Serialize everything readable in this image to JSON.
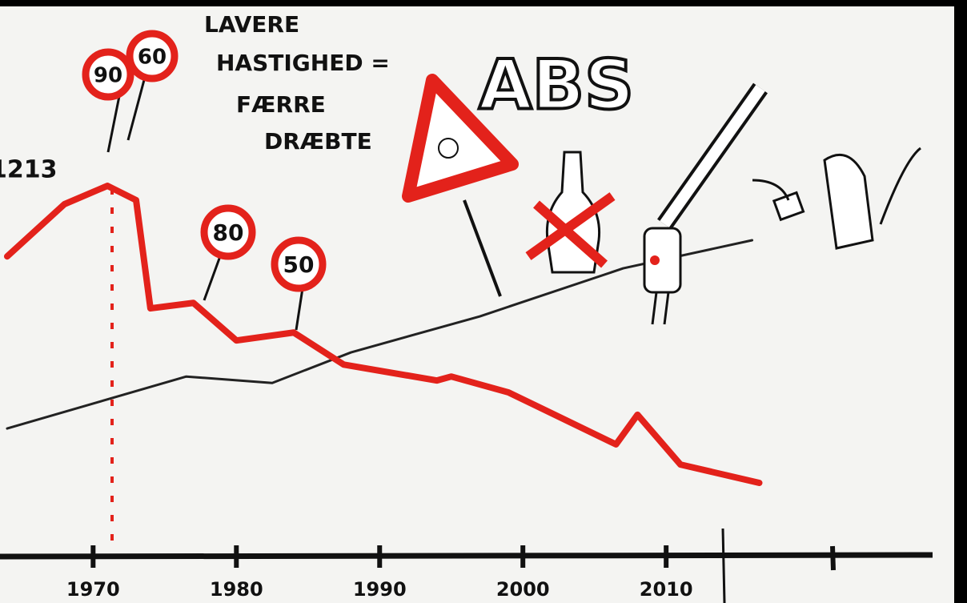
{
  "chart_data": {
    "type": "line",
    "xlim": [
      1963.5,
      2031
    ],
    "ylim": [
      0,
      1821
    ],
    "xticks": [
      1970,
      1980,
      1990,
      2000,
      2010
    ],
    "series": [
      {
        "color": "#e3221b",
        "x": [
          1964,
          1968,
          1971,
          1973,
          1974,
          1977,
          1980,
          1984,
          1987.5,
          1994,
          1995,
          1999,
          2006.5,
          2008,
          2011,
          2016.5
        ],
        "values": [
          982,
          1153,
          1213,
          1166,
          812,
          830,
          707,
          733,
          628,
          576,
          589,
          537,
          367,
          464,
          301,
          241
        ]
      },
      {
        "color": "#222222",
        "x": [
          1964,
          1976.5,
          1982.5,
          1988,
          1997,
          2007,
          2016
        ],
        "values": [
          419,
          589,
          568,
          668,
          786,
          943,
          1035
        ]
      }
    ],
    "peak_label": "1213",
    "annotation": [
      "LAVERE",
      "HASTIGHED =",
      "FÆRRE",
      "DRÆBTE"
    ],
    "speed_signs": [
      "90",
      "60",
      "80",
      "50"
    ],
    "abs_label": "ABS"
  }
}
